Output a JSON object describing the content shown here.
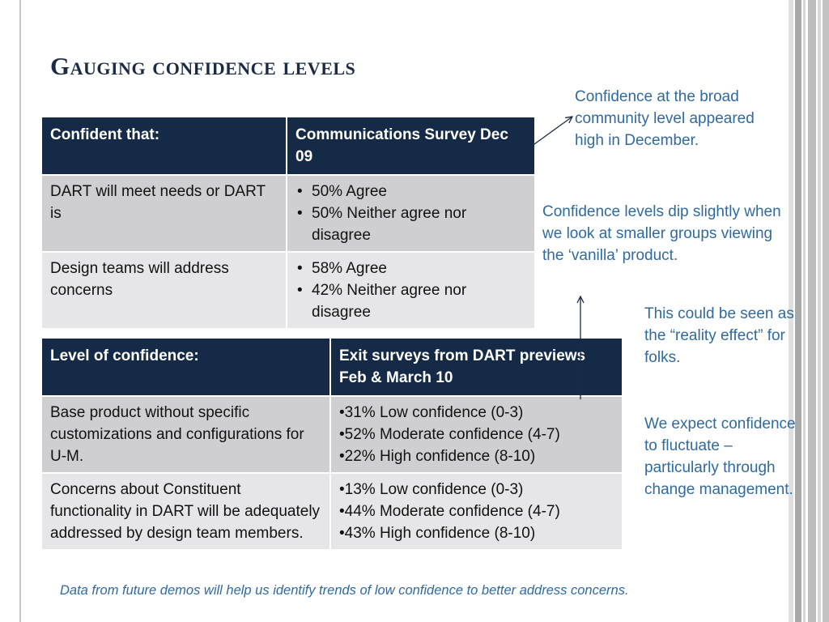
{
  "slide": {
    "title": "Gauging confidence levels",
    "footer": "Data from future demos will help us identify trends of low confidence to better address concerns."
  },
  "table1": {
    "headers": [
      "Confident that:",
      "Communications Survey Dec 09"
    ],
    "rows": [
      {
        "label": "DART will meet needs  or DART is",
        "items": [
          "50% Agree",
          "50% Neither agree nor disagree"
        ]
      },
      {
        "label": "Design teams will address concerns",
        "items": [
          "58% Agree",
          "42% Neither agree nor disagree"
        ]
      }
    ]
  },
  "table2": {
    "headers": [
      "Level of confidence:",
      "Exit surveys from DART previews Feb  & March 10"
    ],
    "rows": [
      {
        "label": "Base product without specific customizations and configurations for U-M.",
        "items": [
          "•31% Low confidence (0-3)",
          "•52% Moderate confidence (4-7)",
          "•22% High confidence (8-10)"
        ]
      },
      {
        "label": "Concerns about Constituent functionality in DART will be adequately addressed by design team members.",
        "items": [
          "•13% Low confidence (0-3)",
          "•44% Moderate confidence (4-7)",
          "•43% High confidence (8-10)"
        ]
      }
    ]
  },
  "notes": {
    "note1": "Confidence at the broad community level appeared high in December.",
    "note2": "Confidence levels dip slightly when we look at smaller groups viewing the ‘vanilla’ product.",
    "note3": "This could be seen as the “reality effect” for folks.",
    "note4": "We expect confidence to fluctuate – particularly through change management."
  },
  "colors": {
    "header_bg": "#152a46",
    "row_dark": "#cfcfd2",
    "row_light": "#e6e6e8",
    "note_blue": "#2f6aa0",
    "title": "#1a2b45"
  }
}
